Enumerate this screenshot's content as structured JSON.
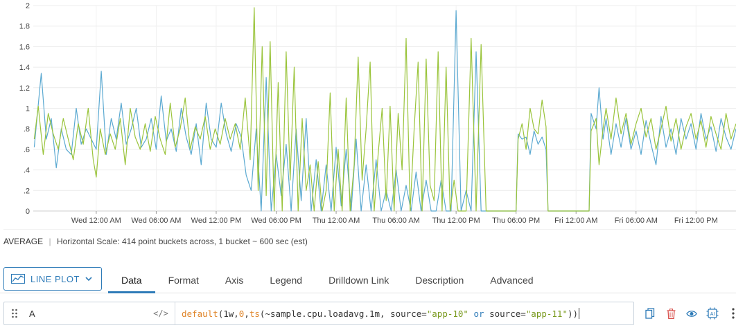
{
  "chart_data": {
    "type": "line",
    "yticks": [
      "2",
      "1.8",
      "1.6",
      "1.4",
      "1.2",
      "1",
      ".8",
      ".6",
      ".4",
      ".2",
      "0"
    ],
    "ylim": [
      0,
      2
    ],
    "grid": true,
    "x_tick_labels": [
      "Wed 12:00 AM",
      "Wed 06:00 AM",
      "Wed 12:00 PM",
      "Wed 06:00 PM",
      "Thu 12:00 AM",
      "Thu 06:00 AM",
      "Thu 12:00 PM",
      "Thu 06:00 PM",
      "Fri 12:00 AM",
      "Fri 06:00 AM",
      "Fri 12:00 PM"
    ],
    "x_ticks_hours": [
      0,
      6,
      12,
      18,
      24,
      30,
      36,
      42,
      48,
      54,
      60
    ],
    "xlim_hours": [
      -6.3,
      64
    ],
    "series_colors": [
      "#5ba9d1",
      "#9ac43b"
    ],
    "series": [
      {
        "color": "#5ba9d1",
        "points": [
          [
            -6.2,
            0.62
          ],
          [
            -5.5,
            1.34
          ],
          [
            -5,
            0.7
          ],
          [
            -4.5,
            0.9
          ],
          [
            -4,
            0.42
          ],
          [
            -3.5,
            0.8
          ],
          [
            -3,
            0.6
          ],
          [
            -2.5,
            0.55
          ],
          [
            -2,
            1.0
          ],
          [
            -1.5,
            0.65
          ],
          [
            -1,
            0.8
          ],
          [
            -0.5,
            0.7
          ],
          [
            0,
            0.6
          ],
          [
            0.5,
            1.36
          ],
          [
            1,
            0.55
          ],
          [
            1.5,
            0.9
          ],
          [
            2,
            0.7
          ],
          [
            2.5,
            1.05
          ],
          [
            3,
            0.65
          ],
          [
            3.5,
            0.8
          ],
          [
            4,
            1.0
          ],
          [
            4.5,
            0.62
          ],
          [
            5,
            0.7
          ],
          [
            5.5,
            0.9
          ],
          [
            6,
            0.6
          ],
          [
            6.5,
            1.12
          ],
          [
            7,
            0.68
          ],
          [
            7.5,
            0.8
          ],
          [
            8,
            0.58
          ],
          [
            8.5,
            1.0
          ],
          [
            9,
            0.72
          ],
          [
            9.5,
            0.55
          ],
          [
            10,
            0.85
          ],
          [
            10.5,
            0.45
          ],
          [
            11,
            1.05
          ],
          [
            11.5,
            0.7
          ],
          [
            12,
            0.62
          ],
          [
            12.5,
            1.05
          ],
          [
            13,
            0.75
          ],
          [
            13.5,
            0.58
          ],
          [
            14,
            0.85
          ],
          [
            14.5,
            0.72
          ],
          [
            15,
            0.35
          ],
          [
            15.5,
            0.2
          ],
          [
            16,
            0.8
          ],
          [
            16.5,
            0
          ],
          [
            17,
            1.3
          ],
          [
            17.5,
            0
          ],
          [
            18,
            0.55
          ],
          [
            18.5,
            0.15
          ],
          [
            19,
            0.65
          ],
          [
            19.5,
            0
          ],
          [
            20,
            0.8
          ],
          [
            20.5,
            0.1
          ],
          [
            21,
            0.9
          ],
          [
            21.5,
            0
          ],
          [
            22,
            0.5
          ],
          [
            22.5,
            0
          ],
          [
            23,
            0.45
          ],
          [
            23.5,
            0
          ],
          [
            24,
            0.62
          ],
          [
            24.5,
            0.05
          ],
          [
            25,
            0.6
          ],
          [
            25.5,
            0
          ],
          [
            26,
            0.7
          ],
          [
            26.5,
            0
          ],
          [
            27,
            0.45
          ],
          [
            27.5,
            0
          ],
          [
            28,
            0.5
          ],
          [
            28.5,
            0
          ],
          [
            29,
            0.2
          ],
          [
            29.5,
            0
          ],
          [
            30,
            0.4
          ],
          [
            30.5,
            0
          ],
          [
            31,
            0.25
          ],
          [
            31.5,
            0
          ],
          [
            32,
            0.38
          ],
          [
            32.5,
            0
          ],
          [
            33,
            0.3
          ],
          [
            33.5,
            0
          ],
          [
            34,
            0
          ],
          [
            34.5,
            0.3
          ],
          [
            35,
            0
          ],
          [
            35.5,
            0
          ],
          [
            36,
            1.95
          ],
          [
            36.5,
            0
          ],
          [
            37,
            0.2
          ],
          [
            37.5,
            0
          ],
          [
            38,
            1.55
          ],
          [
            38.5,
            0
          ],
          [
            39,
            0
          ],
          [
            40,
            0
          ],
          [
            41,
            0
          ],
          [
            42,
            0
          ],
          [
            42.2,
            0.75
          ],
          [
            42.6,
            0.7
          ],
          [
            43,
            0.72
          ],
          [
            43.4,
            0.55
          ],
          [
            43.8,
            0.78
          ],
          [
            44.2,
            0.65
          ],
          [
            44.6,
            0.72
          ],
          [
            45,
            0.6
          ],
          [
            45.2,
            0
          ],
          [
            46,
            0
          ],
          [
            47,
            0
          ],
          [
            48,
            0
          ],
          [
            49,
            0
          ],
          [
            49.3,
            0
          ],
          [
            49.5,
            0.95
          ],
          [
            50,
            0.8
          ],
          [
            50.3,
            1.2
          ],
          [
            50.7,
            0.7
          ],
          [
            51,
            0.9
          ],
          [
            51.5,
            0.55
          ],
          [
            52,
            0.85
          ],
          [
            52.5,
            0.62
          ],
          [
            53,
            0.9
          ],
          [
            53.5,
            0.6
          ],
          [
            54,
            0.78
          ],
          [
            54.5,
            0.55
          ],
          [
            55,
            0.88
          ],
          [
            55.5,
            0.65
          ],
          [
            56,
            0.45
          ],
          [
            56.5,
            0.92
          ],
          [
            57,
            0.62
          ],
          [
            57.5,
            0.8
          ],
          [
            58,
            0.55
          ],
          [
            58.5,
            0.9
          ],
          [
            59,
            0.7
          ],
          [
            59.5,
            0.85
          ],
          [
            60,
            0.6
          ],
          [
            60.5,
            0.95
          ],
          [
            61,
            0.7
          ],
          [
            61.5,
            0.82
          ],
          [
            62,
            0.58
          ],
          [
            62.5,
            0.9
          ],
          [
            63,
            0.72
          ],
          [
            63.5,
            0.6
          ],
          [
            64,
            0.8
          ]
        ]
      },
      {
        "color": "#9ac43b",
        "points": [
          [
            -6.2,
            0.7
          ],
          [
            -5.8,
            1.02
          ],
          [
            -5.3,
            0.55
          ],
          [
            -4.8,
            0.95
          ],
          [
            -4.3,
            0.75
          ],
          [
            -3.8,
            0.6
          ],
          [
            -3.3,
            0.9
          ],
          [
            -2.8,
            0.7
          ],
          [
            -2.3,
            0.5
          ],
          [
            -1.8,
            0.85
          ],
          [
            -1.3,
            0.65
          ],
          [
            -0.8,
            1.0
          ],
          [
            -0.3,
            0.5
          ],
          [
            0,
            0.33
          ],
          [
            0.4,
            0.8
          ],
          [
            0.9,
            0.55
          ],
          [
            1.4,
            0.75
          ],
          [
            1.9,
            0.6
          ],
          [
            2.4,
            0.9
          ],
          [
            2.9,
            0.45
          ],
          [
            3.4,
            1.0
          ],
          [
            3.9,
            0.72
          ],
          [
            4.4,
            0.6
          ],
          [
            4.9,
            0.85
          ],
          [
            5.4,
            0.58
          ],
          [
            5.9,
            0.92
          ],
          [
            6.4,
            0.7
          ],
          [
            6.9,
            0.55
          ],
          [
            7.4,
            1.05
          ],
          [
            7.9,
            0.62
          ],
          [
            8.4,
            0.8
          ],
          [
            8.9,
            1.1
          ],
          [
            9.4,
            0.6
          ],
          [
            9.9,
            0.82
          ],
          [
            10.4,
            0.7
          ],
          [
            10.9,
            0.92
          ],
          [
            11.4,
            0.6
          ],
          [
            11.9,
            0.8
          ],
          [
            12.4,
            0.65
          ],
          [
            12.9,
            0.9
          ],
          [
            13.4,
            0.7
          ],
          [
            13.9,
            0.85
          ],
          [
            14.4,
            0.6
          ],
          [
            14.9,
            1.1
          ],
          [
            15.4,
            0.5
          ],
          [
            15.8,
            1.98
          ],
          [
            16.2,
            0.2
          ],
          [
            16.6,
            1.6
          ],
          [
            17,
            0.15
          ],
          [
            17.4,
            1.65
          ],
          [
            17.8,
            0
          ],
          [
            18.2,
            1.25
          ],
          [
            18.6,
            0
          ],
          [
            19,
            1.55
          ],
          [
            19.4,
            0.3
          ],
          [
            19.8,
            1.4
          ],
          [
            20.2,
            0
          ],
          [
            20.6,
            0.9
          ],
          [
            21,
            0.2
          ],
          [
            21.4,
            0.45
          ],
          [
            21.8,
            0
          ],
          [
            22.2,
            0.48
          ],
          [
            22.6,
            0
          ],
          [
            23,
            0.2
          ],
          [
            23.4,
            1.15
          ],
          [
            23.8,
            0
          ],
          [
            24.2,
            0.6
          ],
          [
            24.6,
            0
          ],
          [
            25,
            1.1
          ],
          [
            25.4,
            0
          ],
          [
            25.8,
            0.45
          ],
          [
            26.2,
            1.5
          ],
          [
            26.6,
            0.3
          ],
          [
            27,
            0.8
          ],
          [
            27.4,
            1.45
          ],
          [
            27.8,
            0
          ],
          [
            28.2,
            0.55
          ],
          [
            28.6,
            1.0
          ],
          [
            29,
            0.1
          ],
          [
            29.4,
            1.02
          ],
          [
            29.8,
            0
          ],
          [
            30.2,
            0.95
          ],
          [
            30.6,
            0.4
          ],
          [
            31,
            1.68
          ],
          [
            31.4,
            0
          ],
          [
            31.8,
            0.8
          ],
          [
            32.2,
            1.45
          ],
          [
            32.6,
            0
          ],
          [
            33,
            1.48
          ],
          [
            33.4,
            0.25
          ],
          [
            33.8,
            0.1
          ],
          [
            34.2,
            1.55
          ],
          [
            34.6,
            0
          ],
          [
            35,
            1.4
          ],
          [
            35.4,
            0
          ],
          [
            35.8,
            0.3
          ],
          [
            36.2,
            0
          ],
          [
            37,
            0
          ],
          [
            37.5,
            1.68
          ],
          [
            38,
            0
          ],
          [
            38.5,
            1.62
          ],
          [
            39,
            0
          ],
          [
            40,
            0
          ],
          [
            41,
            0
          ],
          [
            42,
            0
          ],
          [
            42.2,
            0.7
          ],
          [
            42.6,
            0.85
          ],
          [
            43,
            0.6
          ],
          [
            43.4,
            1.0
          ],
          [
            43.8,
            0.8
          ],
          [
            44.2,
            0.75
          ],
          [
            44.6,
            1.08
          ],
          [
            45,
            0.82
          ],
          [
            45.2,
            0
          ],
          [
            46,
            0
          ],
          [
            47,
            0
          ],
          [
            48,
            0
          ],
          [
            49,
            0
          ],
          [
            49.3,
            0
          ],
          [
            49.5,
            0.78
          ],
          [
            50,
            0.9
          ],
          [
            50.3,
            0.45
          ],
          [
            50.7,
            0.8
          ],
          [
            51,
            1.0
          ],
          [
            51.5,
            0.7
          ],
          [
            52,
            1.1
          ],
          [
            52.5,
            0.75
          ],
          [
            53,
            0.95
          ],
          [
            53.5,
            0.65
          ],
          [
            54,
            0.85
          ],
          [
            54.5,
            1.0
          ],
          [
            55,
            0.72
          ],
          [
            55.5,
            0.9
          ],
          [
            56,
            0.6
          ],
          [
            56.5,
            0.8
          ],
          [
            57,
            1.02
          ],
          [
            57.5,
            0.68
          ],
          [
            58,
            0.9
          ],
          [
            58.5,
            0.6
          ],
          [
            59,
            0.82
          ],
          [
            59.5,
            0.95
          ],
          [
            60,
            0.7
          ],
          [
            60.5,
            0.88
          ],
          [
            61,
            0.62
          ],
          [
            61.5,
            0.92
          ],
          [
            62,
            0.75
          ],
          [
            62.5,
            0.6
          ],
          [
            63,
            0.95
          ],
          [
            63.5,
            0.7
          ],
          [
            64,
            0.85
          ]
        ]
      }
    ]
  },
  "summary": {
    "aggregation": "AVERAGE",
    "separator": "|",
    "scale_text": "Horizontal Scale: 414 point buckets across, 1 bucket ~ 600 sec (est)"
  },
  "plot_type": {
    "label": "LINE PLOT",
    "icon": "line-chart-icon"
  },
  "tabs": [
    {
      "label": "Data",
      "active": true
    },
    {
      "label": "Format"
    },
    {
      "label": "Axis"
    },
    {
      "label": "Legend"
    },
    {
      "label": "Drilldown Link"
    },
    {
      "label": "Description"
    },
    {
      "label": "Advanced"
    }
  ],
  "query": {
    "name": "A",
    "code_toggle": "</>",
    "tokens": {
      "t1": "default",
      "t2": "(",
      "t3": "1w, ",
      "t4": "0",
      "t5": ", ",
      "t6": "ts",
      "t7": "(~sample.cpu.loadavg.1m, source=",
      "t8": "\"app-10\"",
      "t9": " ",
      "t10": "or",
      "t11": " source=",
      "t12": "\"app-11\"",
      "t13": "))"
    }
  },
  "actions": {
    "copy_icon": "copy-icon",
    "delete_icon": "trash-icon",
    "visibility_icon": "eye-icon",
    "ai_icon": "ai-assist-icon",
    "more_icon": "more-vertical-icon",
    "ai_label": "AI"
  },
  "colors": {
    "accent": "#2e7bb8",
    "delete": "#d9534f"
  }
}
